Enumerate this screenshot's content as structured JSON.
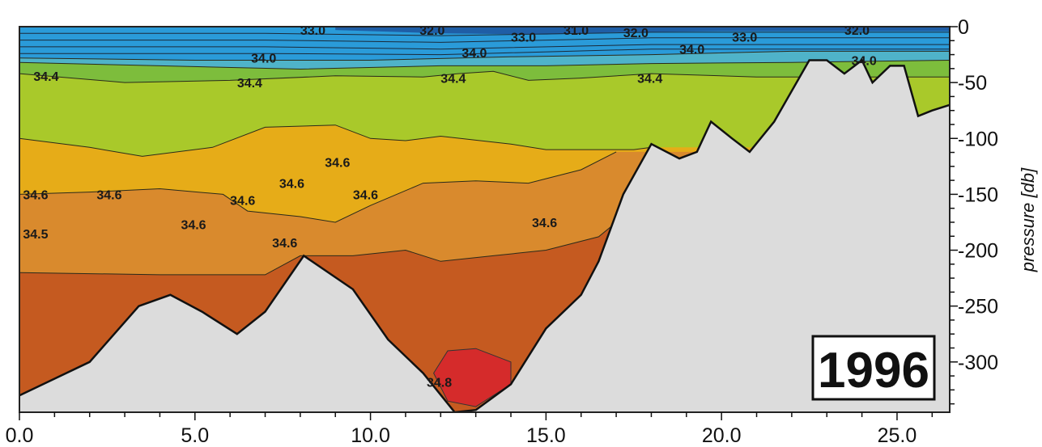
{
  "chart_data": {
    "type": "heatmap",
    "subtype": "contour-section",
    "title": "1996",
    "xlabel": "",
    "ylabel": "pressure [db]",
    "xlim": [
      0,
      26.5
    ],
    "ylim": [
      -345,
      0
    ],
    "x_ticks": [
      "0.0",
      "5.0",
      "10.0",
      "15.0",
      "20.0",
      "25.0"
    ],
    "x_tick_values": [
      0,
      5,
      10,
      15,
      20,
      25
    ],
    "y_ticks": [
      "0",
      "-50",
      "-100",
      "-150",
      "-200",
      "-250",
      "-300"
    ],
    "y_tick_values": [
      0,
      -50,
      -100,
      -150,
      -200,
      -250,
      -300
    ],
    "colors": {
      "band_lt_31": "#1f5ea6",
      "band_33": "#2a9bd9",
      "band_34_0": "#4fb3c9",
      "band_34_2": "#7dbd3c",
      "band_34_4": "#a9c92a",
      "band_34_5": "#e6ac18",
      "band_34_6": "#d98a2d",
      "band_34_7": "#c55a20",
      "band_34_8": "#d52b2b",
      "seafloor": "#dcdcdc"
    },
    "boundaries": [
      {
        "level": "34.0",
        "points": [
          [
            0,
            -28
          ],
          [
            5,
            -30
          ],
          [
            10,
            -30
          ],
          [
            14,
            -27
          ],
          [
            18,
            -25
          ],
          [
            22,
            -22
          ],
          [
            26.5,
            -22
          ]
        ]
      },
      {
        "level": "34.2",
        "points": [
          [
            0,
            -32
          ],
          [
            4,
            -35
          ],
          [
            8,
            -38
          ],
          [
            12,
            -35
          ],
          [
            15,
            -35
          ],
          [
            18,
            -33
          ],
          [
            22,
            -32
          ],
          [
            26.5,
            -30
          ]
        ]
      },
      {
        "level": "34.4",
        "points": [
          [
            0,
            -42
          ],
          [
            3,
            -50
          ],
          [
            6,
            -48
          ],
          [
            9,
            -44
          ],
          [
            11.5,
            -45
          ],
          [
            12.5,
            -42
          ],
          [
            13.5,
            -40
          ],
          [
            14.5,
            -48
          ],
          [
            16,
            -46
          ],
          [
            18,
            -42
          ],
          [
            21,
            -45
          ],
          [
            26.5,
            -45
          ]
        ]
      },
      {
        "level": "34.5",
        "points": [
          [
            0,
            -100
          ],
          [
            2,
            -108
          ],
          [
            3.5,
            -116
          ],
          [
            5.5,
            -108
          ],
          [
            7,
            -90
          ],
          [
            9,
            -88
          ],
          [
            10,
            -100
          ],
          [
            11,
            -102
          ],
          [
            12,
            -98
          ],
          [
            14,
            -105
          ],
          [
            15,
            -110
          ],
          [
            17.5,
            -110
          ],
          [
            18,
            -108
          ]
        ]
      },
      {
        "level": "34.6",
        "points": [
          [
            0,
            -150
          ],
          [
            2,
            -148
          ],
          [
            4,
            -145
          ],
          [
            5.8,
            -150
          ],
          [
            6.5,
            -165
          ],
          [
            8,
            -170
          ],
          [
            9,
            -175
          ],
          [
            10,
            -160
          ],
          [
            11.5,
            -140
          ],
          [
            13,
            -138
          ],
          [
            14.5,
            -140
          ],
          [
            16,
            -128
          ],
          [
            17,
            -112
          ]
        ]
      },
      {
        "level": "34.7",
        "points": [
          [
            0,
            -220
          ],
          [
            4,
            -222
          ],
          [
            7,
            -222
          ],
          [
            8,
            -205
          ],
          [
            9.5,
            -205
          ],
          [
            11,
            -200
          ],
          [
            12,
            -210
          ],
          [
            13.5,
            -205
          ],
          [
            15,
            -200
          ],
          [
            16.5,
            -188
          ],
          [
            17.2,
            -170
          ]
        ]
      }
    ],
    "red_patch": [
      [
        11.8,
        -310
      ],
      [
        12.2,
        -290
      ],
      [
        13,
        -288
      ],
      [
        14,
        -300
      ],
      [
        14,
        -320
      ],
      [
        13,
        -340
      ],
      [
        12.2,
        -335
      ]
    ],
    "seafloor": [
      [
        0,
        -330
      ],
      [
        1,
        -315
      ],
      [
        2,
        -300
      ],
      [
        3.4,
        -250
      ],
      [
        4.3,
        -240
      ],
      [
        5.2,
        -255
      ],
      [
        6.2,
        -275
      ],
      [
        7,
        -255
      ],
      [
        8.1,
        -205
      ],
      [
        9.5,
        -235
      ],
      [
        10.5,
        -280
      ],
      [
        11.5,
        -310
      ],
      [
        12.4,
        -345
      ],
      [
        13,
        -343
      ],
      [
        14,
        -320
      ],
      [
        15,
        -270
      ],
      [
        16,
        -240
      ],
      [
        16.5,
        -210
      ],
      [
        17.2,
        -150
      ],
      [
        18,
        -105
      ],
      [
        18.8,
        -118
      ],
      [
        19.3,
        -112
      ],
      [
        19.7,
        -85
      ],
      [
        20.3,
        -100
      ],
      [
        20.8,
        -112
      ],
      [
        21.5,
        -85
      ],
      [
        22.5,
        -30
      ],
      [
        23,
        -30
      ],
      [
        23.5,
        -42
      ],
      [
        24,
        -30
      ],
      [
        24.3,
        -50
      ],
      [
        24.8,
        -35
      ],
      [
        25.2,
        -35
      ],
      [
        25.6,
        -80
      ],
      [
        26,
        -75
      ],
      [
        26.5,
        -70
      ]
    ],
    "contour_labels": [
      {
        "text": "33.0",
        "x": 8.0,
        "y": -3
      },
      {
        "text": "32.0",
        "x": 11.4,
        "y": -3
      },
      {
        "text": "33.0",
        "x": 14.0,
        "y": -9
      },
      {
        "text": "31.0",
        "x": 15.5,
        "y": -3
      },
      {
        "text": "32.0",
        "x": 17.2,
        "y": -5
      },
      {
        "text": "33.0",
        "x": 20.3,
        "y": -9
      },
      {
        "text": "32.0",
        "x": 23.5,
        "y": -3
      },
      {
        "text": "34.0",
        "x": 6.6,
        "y": -28
      },
      {
        "text": "34.0",
        "x": 12.6,
        "y": -23
      },
      {
        "text": "34.0",
        "x": 18.8,
        "y": -20
      },
      {
        "text": "34.0",
        "x": 23.7,
        "y": -30
      },
      {
        "text": "34.4",
        "x": 0.4,
        "y": -44
      },
      {
        "text": "34.4",
        "x": 6.2,
        "y": -50
      },
      {
        "text": "34.4",
        "x": 12.0,
        "y": -46
      },
      {
        "text": "34.4",
        "x": 17.6,
        "y": -46
      },
      {
        "text": "34.6",
        "x": 0.1,
        "y": -150
      },
      {
        "text": "34.6",
        "x": 2.2,
        "y": -150
      },
      {
        "text": "34.5",
        "x": 0.1,
        "y": -185
      },
      {
        "text": "34.6",
        "x": 4.6,
        "y": -177
      },
      {
        "text": "34.6",
        "x": 6.0,
        "y": -155
      },
      {
        "text": "34.6",
        "x": 7.4,
        "y": -140
      },
      {
        "text": "34.6",
        "x": 8.7,
        "y": -121
      },
      {
        "text": "34.6",
        "x": 9.5,
        "y": -150
      },
      {
        "text": "34.6",
        "x": 7.2,
        "y": -193
      },
      {
        "text": "34.6",
        "x": 14.6,
        "y": -175
      },
      {
        "text": "34.8",
        "x": 11.6,
        "y": -318
      }
    ]
  }
}
